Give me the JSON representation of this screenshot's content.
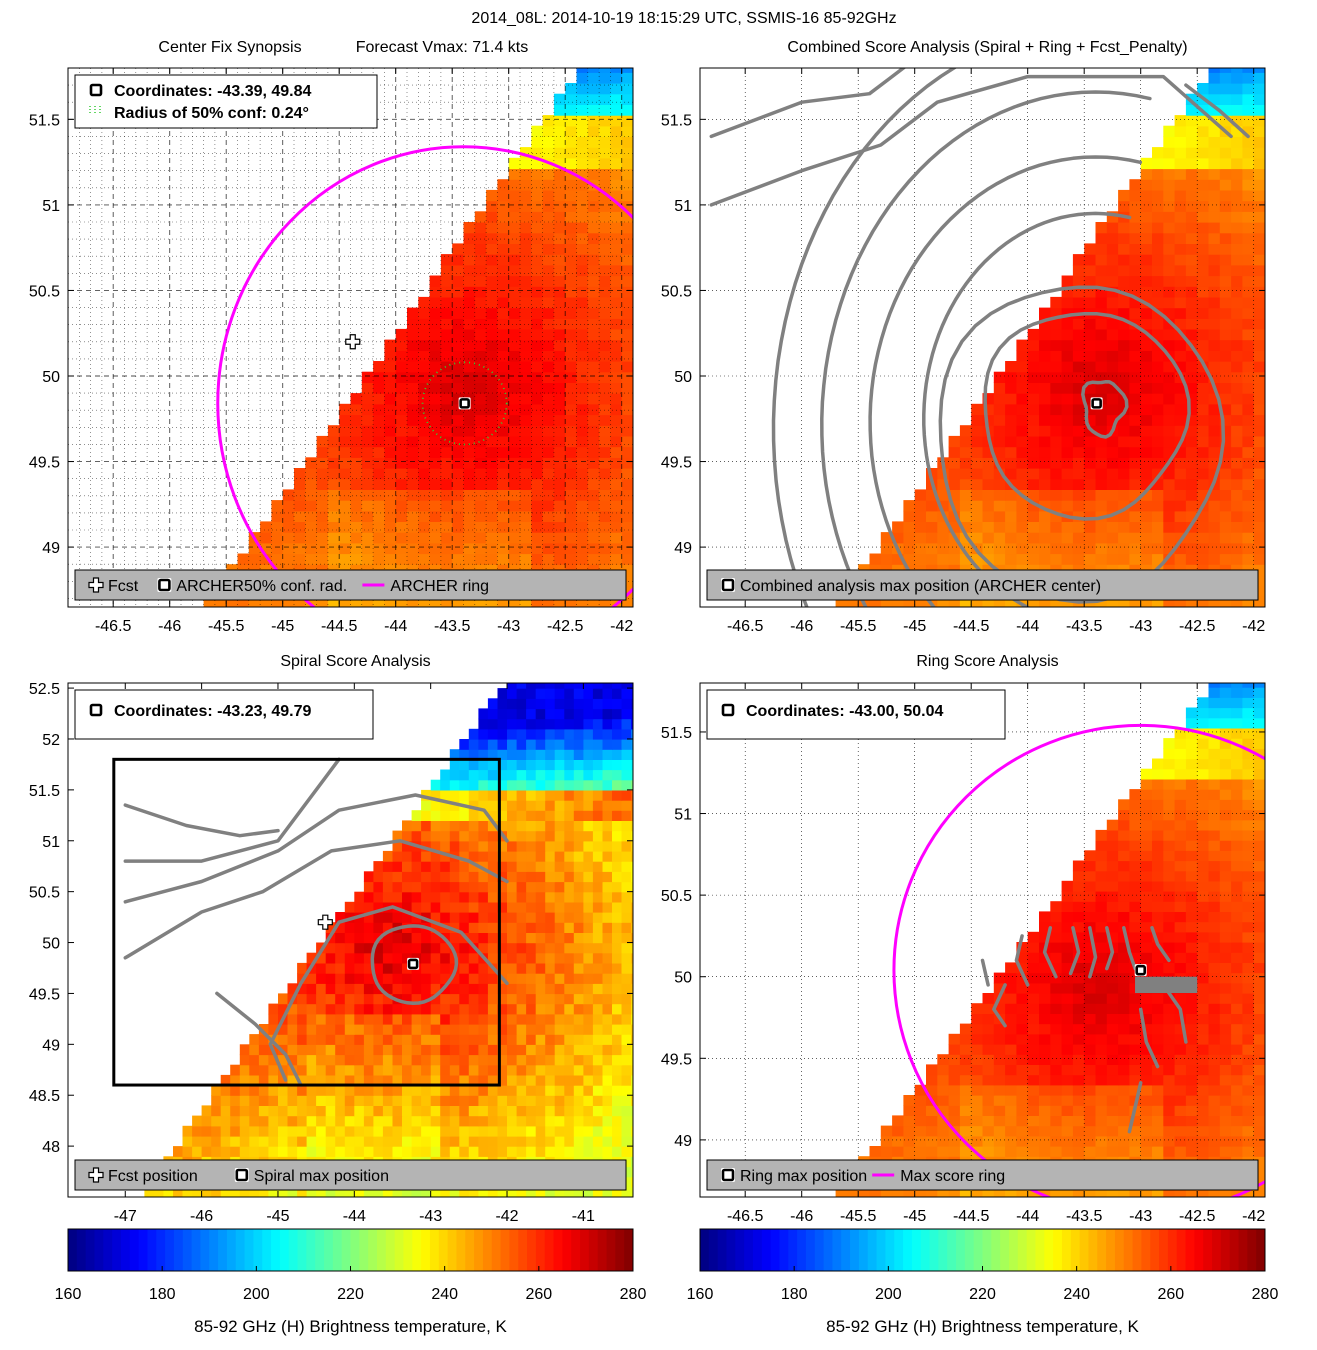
{
  "figure": {
    "suptitle": "2014_08L: 2014-10-19 18:15:29 UTC, SSMIS-16 85-92GHz",
    "colors": {
      "ring": "#ff00ff",
      "contour": "#808080",
      "conf_circle": "#33cc33",
      "legend_bg": "#b4b4b4",
      "nodata": "#ffffff"
    }
  },
  "chart_data": [
    {
      "id": "synopsis",
      "type": "heatmap",
      "title": "Center Fix Synopsis",
      "subtitle": "Forecast Vmax: 71.4 kts",
      "xlim": [
        -46.9,
        -41.9
      ],
      "ylim": [
        48.65,
        51.8
      ],
      "xticks": [
        -46.5,
        -46,
        -45.5,
        -45,
        -44.5,
        -44,
        -43.5,
        -43,
        -42.5,
        -42
      ],
      "yticks": [
        49,
        49.5,
        50,
        50.5,
        51,
        51.5
      ],
      "grid": "dense-dotted",
      "info_lines": [
        "Coordinates: -43.39, 49.84",
        "Radius of 50% conf: 0.24°"
      ],
      "legend": [
        {
          "symbol": "plus",
          "label": "Fcst"
        },
        {
          "symbol": "square",
          "label": "ARCHER"
        },
        {
          "symbol": "dots",
          "label": "50% conf. rad."
        },
        {
          "symbol": "line",
          "label": "ARCHER ring"
        }
      ],
      "center": {
        "lon": -43.39,
        "lat": 49.84
      },
      "forecast": {
        "lon": -44.38,
        "lat": 50.2
      },
      "conf_radius_deg": 0.24,
      "ring": {
        "lon": -43.4,
        "lat": 49.84,
        "radius_deg": 1.5
      }
    },
    {
      "id": "combined",
      "type": "heatmap",
      "title": "Combined Score Analysis (Spiral + Ring + Fcst_Penalty)",
      "xlim": [
        -46.9,
        -41.9
      ],
      "ylim": [
        48.65,
        51.8
      ],
      "xticks": [
        -46.5,
        -46,
        -45.5,
        -45,
        -44.5,
        -44,
        -43.5,
        -43,
        -42.5,
        -42
      ],
      "yticks": [
        49,
        49.5,
        50,
        50.5,
        51,
        51.5
      ],
      "grid": "dotted",
      "legend": [
        {
          "symbol": "square",
          "label": "Combined analysis max position (ARCHER center)"
        }
      ],
      "center": {
        "lon": -43.39,
        "lat": 49.84
      },
      "contours": "combined-score"
    },
    {
      "id": "spiral",
      "type": "heatmap",
      "title": "Spiral Score Analysis",
      "xlim": [
        -47.75,
        -40.35
      ],
      "ylim": [
        47.5,
        52.55
      ],
      "xticks": [
        -47,
        -46,
        -45,
        -44,
        -43,
        -42,
        -41
      ],
      "yticks": [
        48,
        48.5,
        49,
        49.5,
        50,
        50.5,
        51,
        51.5,
        52,
        52.5
      ],
      "grid": "none",
      "info_lines": [
        "Coordinates: -43.23, 49.79"
      ],
      "legend": [
        {
          "symbol": "plus",
          "label": "Fcst position"
        },
        {
          "symbol": "square",
          "label": "Spiral max position"
        }
      ],
      "center": {
        "lon": -43.23,
        "lat": 49.79
      },
      "forecast": {
        "lon": -44.38,
        "lat": 50.2
      },
      "box": {
        "lon": [
          -47.15,
          -42.1
        ],
        "lat": [
          48.6,
          51.8
        ]
      },
      "contours": "spiral-score"
    },
    {
      "id": "ring",
      "type": "heatmap",
      "title": "Ring Score Analysis",
      "xlim": [
        -46.9,
        -41.9
      ],
      "ylim": [
        48.65,
        51.8
      ],
      "xticks": [
        -46.5,
        -46,
        -45.5,
        -45,
        -44.5,
        -44,
        -43.5,
        -43,
        -42.5,
        -42
      ],
      "yticks": [
        49,
        49.5,
        50,
        50.5,
        51,
        51.5
      ],
      "grid": "dotted",
      "info_lines": [
        "Coordinates: -43.00, 50.04"
      ],
      "legend": [
        {
          "symbol": "square",
          "label": "Ring max position"
        },
        {
          "symbol": "line",
          "label": "Max score ring"
        }
      ],
      "center": {
        "lon": -43.0,
        "lat": 50.04
      },
      "ring": {
        "lon": -43.0,
        "lat": 50.04,
        "radius_deg": 1.5
      },
      "contours": "ring-score"
    }
  ],
  "colorbars": [
    {
      "id": "cb-left",
      "range": [
        160,
        280
      ],
      "ticks": [
        160,
        180,
        200,
        220,
        240,
        260,
        280
      ],
      "label": "85-92 GHz (H) Brightness temperature, K"
    },
    {
      "id": "cb-right",
      "range": [
        160,
        280
      ],
      "ticks": [
        160,
        180,
        200,
        220,
        240,
        260,
        280
      ],
      "label": "85-92 GHz (H) Brightness temperature, K"
    }
  ]
}
